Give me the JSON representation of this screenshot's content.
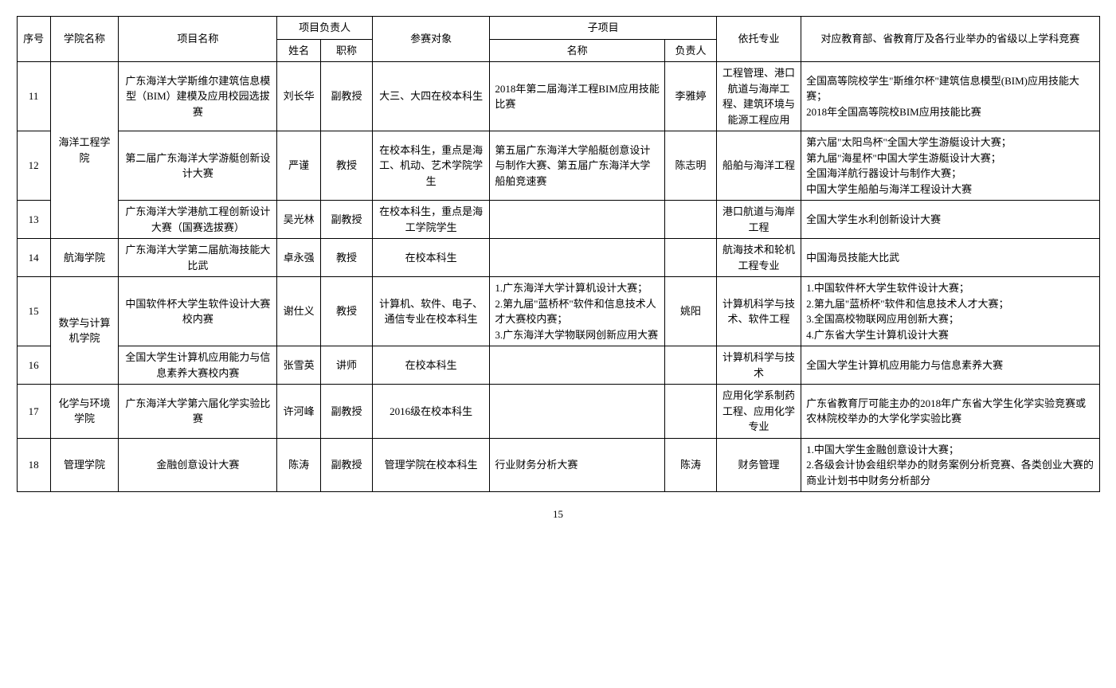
{
  "headers": {
    "seq": "序号",
    "college": "学院名称",
    "project": "项目名称",
    "leader_group": "项目负责人",
    "leader_name": "姓名",
    "leader_title": "职称",
    "target": "参赛对象",
    "sub_group": "子项目",
    "sub_name": "名称",
    "sub_leader": "负责人",
    "major": "依托专业",
    "competition": "对应教育部、省教育厅及各行业举办的省级以上学科竞赛"
  },
  "rows": [
    {
      "seq": "11",
      "college": "海洋工程学院",
      "college_rowspan": 3,
      "project": "广东海洋大学斯维尔建筑信息模型（BIM）建模及应用校园选拔赛",
      "name": "刘长华",
      "title": "副教授",
      "target": "大三、大四在校本科生",
      "sub_name": "2018年第二届海洋工程BIM应用技能比赛",
      "sub_leader": "李雅婷",
      "major": "工程管理、港口航道与海岸工程、建筑环境与能源工程应用",
      "competition": "全国高等院校学生\"斯维尔杯\"建筑信息模型(BIM)应用技能大赛；\n2018年全国高等院校BIM应用技能比赛"
    },
    {
      "seq": "12",
      "project": "第二届广东海洋大学游艇创新设计大赛",
      "name": "严谨",
      "title": "教授",
      "target": "在校本科生，重点是海工、机动、艺术学院学生",
      "sub_name": "第五届广东海洋大学船艇创意设计与制作大赛、第五届广东海洋大学船舶竞速赛",
      "sub_leader": "陈志明",
      "major": "船舶与海洋工程",
      "competition": "第六届\"太阳鸟杯\"全国大学生游艇设计大赛；\n第九届\"海星杯\"中国大学生游艇设计大赛；\n全国海洋航行器设计与制作大赛；\n中国大学生船舶与海洋工程设计大赛"
    },
    {
      "seq": "13",
      "project": "广东海洋大学港航工程创新设计大赛（国赛选拔赛）",
      "name": "吴光林",
      "title": "副教授",
      "target": "在校本科生，重点是海工学院学生",
      "sub_name": "",
      "sub_leader": "",
      "major": "港口航道与海岸工程",
      "competition": "全国大学生水利创新设计大赛"
    },
    {
      "seq": "14",
      "college": "航海学院",
      "college_rowspan": 1,
      "project": "广东海洋大学第二届航海技能大比武",
      "name": "卓永强",
      "title": "教授",
      "target": "在校本科生",
      "sub_name": "",
      "sub_leader": "",
      "major": "航海技术和轮机工程专业",
      "competition": "中国海员技能大比武"
    },
    {
      "seq": "15",
      "college": "数学与计算机学院",
      "college_rowspan": 2,
      "project": "中国软件杯大学生软件设计大赛校内赛",
      "name": "谢仕义",
      "title": "教授",
      "target": "计算机、软件、电子、通信专业在校本科生",
      "sub_name": "1.广东海洋大学计算机设计大赛；\n2.第九届\"蓝桥杯\"软件和信息技术人才大赛校内赛；\n3.广东海洋大学物联网创新应用大赛",
      "sub_leader": "姚阳",
      "major": "计算机科学与技术、软件工程",
      "competition": "1.中国软件杯大学生软件设计大赛；\n2.第九届\"蓝桥杯\"软件和信息技术人才大赛；\n3.全国高校物联网应用创新大赛；\n4.广东省大学生计算机设计大赛"
    },
    {
      "seq": "16",
      "project": "全国大学生计算机应用能力与信息素养大赛校内赛",
      "name": "张雪英",
      "title": "讲师",
      "target": "在校本科生",
      "sub_name": "",
      "sub_leader": "",
      "major": "计算机科学与技术",
      "competition": "全国大学生计算机应用能力与信息素养大赛"
    },
    {
      "seq": "17",
      "college": "化学与环境学院",
      "college_rowspan": 1,
      "project": "广东海洋大学第六届化学实验比赛",
      "name": "许河峰",
      "title": "副教授",
      "target": "2016级在校本科生",
      "sub_name": "",
      "sub_leader": "",
      "major": "应用化学系制药工程、应用化学专业",
      "competition": "广东省教育厅可能主办的2018年广东省大学生化学实验竞赛或农林院校举办的大学化学实验比赛"
    },
    {
      "seq": "18",
      "college": "管理学院",
      "college_rowspan": 1,
      "project": "金融创意设计大赛",
      "name": "陈涛",
      "title": "副教授",
      "target": "管理学院在校本科生",
      "sub_name": "行业财务分析大赛",
      "sub_leader": "陈涛",
      "major": "财务管理",
      "competition": "1.中国大学生金融创意设计大赛；\n2.各级会计协会组织举办的财务案例分析竞赛、各类创业大赛的商业计划书中财务分析部分"
    }
  ],
  "page_number": "15"
}
